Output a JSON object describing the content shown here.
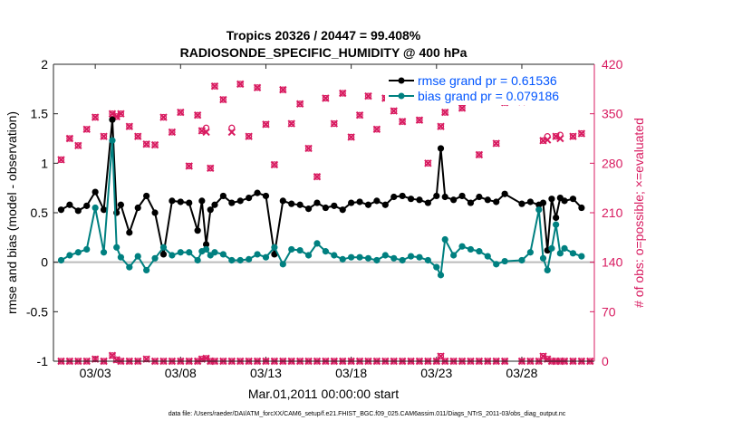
{
  "chart_data": {
    "type": "line",
    "title_line1": "Tropics 20326 / 20447 = 99.408%",
    "title_line2": "RADIOSONDE_SPECIFIC_HUMIDITY @ 400 hPa",
    "xlabel": "Mar.01,2011 00:00:00 start",
    "ylabel_left": "rmse and bias (model - observation)",
    "ylabel_right": "# of obs: o=possible; ×=evaluated",
    "footer": "data file: /Users/raeder/DAI/ATM_forcXX/CAM6_setup/f.e21.FHIST_BGC.f09_025.CAM6assim.011/Diags_NTrS_2011-03/obs_diag_output.nc",
    "xlim": [
      0.55,
      32.25
    ],
    "ylim_left": [
      -1,
      2
    ],
    "ylim_right": [
      0,
      420
    ],
    "x_ticks": [
      {
        "value": 3,
        "label": "03/03"
      },
      {
        "value": 8,
        "label": "03/08"
      },
      {
        "value": 13,
        "label": "03/13"
      },
      {
        "value": 18,
        "label": "03/18"
      },
      {
        "value": 23,
        "label": "03/23"
      },
      {
        "value": 28,
        "label": "03/28"
      }
    ],
    "y_ticks_left": [
      {
        "value": -1,
        "label": "-1"
      },
      {
        "value": -0.5,
        "label": "-0.5"
      },
      {
        "value": 0,
        "label": "0"
      },
      {
        "value": 0.5,
        "label": "0.5"
      },
      {
        "value": 1,
        "label": "1"
      },
      {
        "value": 1.5,
        "label": "1.5"
      },
      {
        "value": 2,
        "label": "2"
      }
    ],
    "y_ticks_right": [
      {
        "value": 0,
        "label": "0"
      },
      {
        "value": 70,
        "label": "70"
      },
      {
        "value": 140,
        "label": "140"
      },
      {
        "value": 210,
        "label": "210"
      },
      {
        "value": 280,
        "label": "280"
      },
      {
        "value": 350,
        "label": "350"
      },
      {
        "value": 420,
        "label": "420"
      }
    ],
    "legend": [
      {
        "name": "rmse grand pr = 0.61536",
        "color": "#000000"
      },
      {
        "name": "bias grand pr = 0.079186",
        "color": "#008080"
      }
    ],
    "colors": {
      "rmse": "#000000",
      "bias": "#008080",
      "obs": "#d81b60",
      "legend_text": "#0055ff",
      "zero_line": "#bbbbbb"
    },
    "series": [
      {
        "name": "rmse",
        "points": [
          [
            1,
            0.53
          ],
          [
            1.5,
            0.58
          ],
          [
            2,
            0.52
          ],
          [
            2.5,
            0.57
          ],
          [
            3,
            0.71
          ],
          [
            3.5,
            0.53
          ],
          [
            4,
            1.44
          ],
          [
            4.25,
            0.5
          ],
          [
            4.5,
            0.58
          ],
          [
            5,
            0.3
          ],
          [
            5.5,
            0.55
          ],
          [
            6,
            0.67
          ],
          [
            6.5,
            0.5
          ],
          [
            7,
            0.08
          ],
          [
            7.5,
            0.62
          ],
          [
            8,
            0.61
          ],
          [
            8.5,
            0.6
          ],
          [
            9,
            0.32
          ],
          [
            9.25,
            0.62
          ],
          [
            9.5,
            0.18
          ],
          [
            9.75,
            0.53
          ],
          [
            10,
            0.58
          ],
          [
            10.5,
            0.67
          ],
          [
            11,
            0.6
          ],
          [
            11.5,
            0.62
          ],
          [
            12,
            0.65
          ],
          [
            12.5,
            0.7
          ],
          [
            13,
            0.67
          ],
          [
            13.5,
            0.08
          ],
          [
            14,
            0.62
          ],
          [
            14.5,
            0.59
          ],
          [
            15,
            0.58
          ],
          [
            15.5,
            0.54
          ],
          [
            16,
            0.6
          ],
          [
            16.5,
            0.55
          ],
          [
            17,
            0.57
          ],
          [
            17.5,
            0.53
          ],
          [
            18,
            0.6
          ],
          [
            18.5,
            0.61
          ],
          [
            19,
            0.58
          ],
          [
            19.5,
            0.62
          ],
          [
            20,
            0.58
          ],
          [
            20.5,
            0.66
          ],
          [
            21,
            0.67
          ],
          [
            21.5,
            0.64
          ],
          [
            22,
            0.63
          ],
          [
            22.5,
            0.6
          ],
          [
            23,
            0.67
          ],
          [
            23.25,
            1.15
          ],
          [
            23.5,
            0.66
          ],
          [
            24,
            0.63
          ],
          [
            24.5,
            0.67
          ],
          [
            25,
            0.6
          ],
          [
            25.5,
            0.66
          ],
          [
            26,
            0.63
          ],
          [
            26.5,
            0.61
          ],
          [
            27,
            0.69
          ],
          [
            28,
            0.59
          ],
          [
            28.5,
            0.61
          ],
          [
            29,
            0.58
          ],
          [
            29.25,
            0.6
          ],
          [
            29.5,
            0.12
          ],
          [
            29.75,
            0.64
          ],
          [
            30,
            0.45
          ],
          [
            30.25,
            0.65
          ],
          [
            30.5,
            0.62
          ],
          [
            31,
            0.64
          ],
          [
            31.5,
            0.55
          ]
        ]
      },
      {
        "name": "bias",
        "points": [
          [
            1,
            0.02
          ],
          [
            1.5,
            0.07
          ],
          [
            2,
            0.1
          ],
          [
            2.5,
            0.13
          ],
          [
            3,
            0.55
          ],
          [
            3.5,
            0.1
          ],
          [
            4,
            1.23
          ],
          [
            4.25,
            0.15
          ],
          [
            4.5,
            0.05
          ],
          [
            5,
            -0.05
          ],
          [
            5.5,
            0.06
          ],
          [
            6,
            -0.08
          ],
          [
            6.5,
            0.04
          ],
          [
            7,
            0.15
          ],
          [
            7.5,
            0.07
          ],
          [
            8,
            0.1
          ],
          [
            8.5,
            0.1
          ],
          [
            9,
            0.02
          ],
          [
            9.25,
            0.11
          ],
          [
            9.5,
            0.13
          ],
          [
            9.75,
            0.07
          ],
          [
            10,
            0.1
          ],
          [
            10.5,
            0.08
          ],
          [
            11,
            0.02
          ],
          [
            11.5,
            0.02
          ],
          [
            12,
            0.03
          ],
          [
            12.5,
            0.08
          ],
          [
            13,
            0.05
          ],
          [
            13.5,
            0.15
          ],
          [
            14,
            -0.02
          ],
          [
            14.5,
            0.13
          ],
          [
            15,
            0.12
          ],
          [
            15.5,
            0.07
          ],
          [
            16,
            0.19
          ],
          [
            16.5,
            0.11
          ],
          [
            17,
            0.07
          ],
          [
            17.5,
            0.03
          ],
          [
            18,
            0.05
          ],
          [
            18.5,
            0.05
          ],
          [
            19,
            0.04
          ],
          [
            19.5,
            0.02
          ],
          [
            20,
            0.07
          ],
          [
            20.5,
            0.04
          ],
          [
            21,
            0.02
          ],
          [
            21.5,
            0.06
          ],
          [
            22,
            0.05
          ],
          [
            22.5,
            0.02
          ],
          [
            23,
            -0.05
          ],
          [
            23.25,
            -0.13
          ],
          [
            23.5,
            0.23
          ],
          [
            24,
            0.07
          ],
          [
            24.5,
            0.16
          ],
          [
            25,
            0.13
          ],
          [
            25.5,
            0.11
          ],
          [
            26,
            0.06
          ],
          [
            26.5,
            -0.02
          ],
          [
            27,
            0.01
          ],
          [
            28,
            0.02
          ],
          [
            28.5,
            0.1
          ],
          [
            29,
            0.53
          ],
          [
            29.25,
            0.04
          ],
          [
            29.5,
            -0.08
          ],
          [
            29.75,
            0.14
          ],
          [
            30,
            0.38
          ],
          [
            30.25,
            0.09
          ],
          [
            30.5,
            0.14
          ],
          [
            31,
            0.09
          ],
          [
            31.5,
            0.06
          ]
        ]
      }
    ],
    "obs_possible": [
      [
        1,
        285
      ],
      [
        1.5,
        315
      ],
      [
        2,
        305
      ],
      [
        2.5,
        328
      ],
      [
        3,
        345
      ],
      [
        3.5,
        318
      ],
      [
        4,
        350
      ],
      [
        4.25,
        346
      ],
      [
        4.5,
        350
      ],
      [
        5,
        332
      ],
      [
        5.5,
        318
      ],
      [
        6,
        307
      ],
      [
        6.5,
        306
      ],
      [
        7,
        345
      ],
      [
        7.5,
        324
      ],
      [
        8,
        352
      ],
      [
        8.5,
        276
      ],
      [
        9,
        348
      ],
      [
        9.25,
        326
      ],
      [
        9.5,
        330
      ],
      [
        9.75,
        273
      ],
      [
        10,
        389
      ],
      [
        10.5,
        370
      ],
      [
        11,
        330
      ],
      [
        11.5,
        392
      ],
      [
        12,
        318
      ],
      [
        12.5,
        387
      ],
      [
        13,
        335
      ],
      [
        13.5,
        278
      ],
      [
        14,
        384
      ],
      [
        14.5,
        336
      ],
      [
        15,
        364
      ],
      [
        15.5,
        301
      ],
      [
        16,
        261
      ],
      [
        16.5,
        372
      ],
      [
        17,
        336
      ],
      [
        17.5,
        379
      ],
      [
        18,
        317
      ],
      [
        18.5,
        348
      ],
      [
        19,
        375
      ],
      [
        19.5,
        328
      ],
      [
        20,
        372
      ],
      [
        20.5,
        354
      ],
      [
        21,
        339
      ],
      [
        21.5,
        379
      ],
      [
        22,
        341
      ],
      [
        22.5,
        280
      ],
      [
        23,
        391
      ],
      [
        23.25,
        332
      ],
      [
        23.5,
        352
      ],
      [
        24,
        374
      ],
      [
        24.5,
        358
      ],
      [
        25,
        383
      ],
      [
        25.5,
        292
      ],
      [
        26,
        380
      ],
      [
        26.5,
        308
      ],
      [
        27,
        366
      ],
      [
        28,
        367
      ],
      [
        28.5,
        368
      ],
      [
        29,
        372
      ],
      [
        29.25,
        312
      ],
      [
        29.5,
        318
      ],
      [
        29.75,
        375
      ],
      [
        30,
        318
      ],
      [
        30.25,
        320
      ],
      [
        30.5,
        387
      ],
      [
        31,
        318
      ],
      [
        31.5,
        322
      ]
    ],
    "obs_evaluated": [
      [
        1,
        285
      ],
      [
        1.5,
        315
      ],
      [
        2,
        305
      ],
      [
        2.5,
        328
      ],
      [
        3,
        345
      ],
      [
        3.5,
        318
      ],
      [
        4,
        350
      ],
      [
        4.25,
        346
      ],
      [
        4.5,
        350
      ],
      [
        5,
        332
      ],
      [
        5.5,
        318
      ],
      [
        6,
        307
      ],
      [
        6.5,
        306
      ],
      [
        7,
        345
      ],
      [
        7.5,
        324
      ],
      [
        8,
        352
      ],
      [
        8.5,
        276
      ],
      [
        9,
        348
      ],
      [
        9.25,
        326
      ],
      [
        9.5,
        324
      ],
      [
        9.75,
        273
      ],
      [
        10,
        389
      ],
      [
        10.5,
        370
      ],
      [
        11,
        324
      ],
      [
        11.5,
        392
      ],
      [
        12,
        318
      ],
      [
        12.5,
        387
      ],
      [
        13,
        335
      ],
      [
        13.5,
        278
      ],
      [
        14,
        384
      ],
      [
        14.5,
        336
      ],
      [
        15,
        364
      ],
      [
        15.5,
        301
      ],
      [
        16,
        261
      ],
      [
        16.5,
        372
      ],
      [
        17,
        336
      ],
      [
        17.5,
        379
      ],
      [
        18,
        317
      ],
      [
        18.5,
        348
      ],
      [
        19,
        375
      ],
      [
        19.5,
        328
      ],
      [
        20,
        372
      ],
      [
        20.5,
        354
      ],
      [
        21,
        339
      ],
      [
        21.5,
        379
      ],
      [
        22,
        341
      ],
      [
        22.5,
        280
      ],
      [
        23,
        391
      ],
      [
        23.25,
        332
      ],
      [
        23.5,
        352
      ],
      [
        24,
        374
      ],
      [
        24.5,
        358
      ],
      [
        25,
        383
      ],
      [
        25.5,
        292
      ],
      [
        26,
        380
      ],
      [
        26.5,
        308
      ],
      [
        27,
        366
      ],
      [
        28,
        367
      ],
      [
        28.5,
        368
      ],
      [
        29,
        372
      ],
      [
        29.25,
        312
      ],
      [
        29.5,
        313
      ],
      [
        29.75,
        375
      ],
      [
        30,
        318
      ],
      [
        30.25,
        315
      ],
      [
        30.5,
        387
      ],
      [
        31,
        318
      ],
      [
        31.5,
        322
      ]
    ],
    "obs_bottom_possible": [
      [
        1,
        0
      ],
      [
        1.5,
        0
      ],
      [
        2,
        0
      ],
      [
        2.5,
        0
      ],
      [
        3,
        3
      ],
      [
        3.5,
        0
      ],
      [
        4,
        8
      ],
      [
        4.25,
        2
      ],
      [
        4.5,
        0
      ],
      [
        5,
        0
      ],
      [
        5.5,
        0
      ],
      [
        6,
        3
      ],
      [
        6.5,
        0
      ],
      [
        7,
        0
      ],
      [
        7.5,
        0
      ],
      [
        8,
        0
      ],
      [
        8.5,
        0
      ],
      [
        9,
        0
      ],
      [
        9.25,
        3
      ],
      [
        9.5,
        4
      ],
      [
        9.75,
        0
      ],
      [
        10,
        0
      ],
      [
        10.5,
        0
      ],
      [
        11,
        0
      ],
      [
        11.5,
        0
      ],
      [
        12,
        0
      ],
      [
        12.5,
        0
      ],
      [
        13,
        0
      ],
      [
        13.5,
        0
      ],
      [
        14,
        0
      ],
      [
        14.5,
        0
      ],
      [
        15,
        0
      ],
      [
        15.5,
        0
      ],
      [
        16,
        0
      ],
      [
        16.5,
        0
      ],
      [
        17,
        0
      ],
      [
        17.5,
        0
      ],
      [
        18,
        0
      ],
      [
        18.5,
        0
      ],
      [
        19,
        0
      ],
      [
        19.5,
        0
      ],
      [
        20,
        0
      ],
      [
        20.5,
        0
      ],
      [
        21,
        0
      ],
      [
        21.5,
        0
      ],
      [
        22,
        0
      ],
      [
        22.5,
        0
      ],
      [
        23,
        0
      ],
      [
        23.25,
        7
      ],
      [
        23.5,
        0
      ],
      [
        24,
        0
      ],
      [
        24.5,
        0
      ],
      [
        25,
        0
      ],
      [
        25.5,
        0
      ],
      [
        26,
        0
      ],
      [
        26.5,
        0
      ],
      [
        27,
        0
      ],
      [
        28,
        0
      ],
      [
        28.5,
        0
      ],
      [
        29,
        0
      ],
      [
        29.25,
        7
      ],
      [
        29.5,
        3
      ],
      [
        29.75,
        0
      ],
      [
        30,
        0
      ],
      [
        30.25,
        0
      ],
      [
        30.5,
        0
      ],
      [
        31,
        0
      ],
      [
        31.5,
        0
      ],
      [
        32,
        0
      ]
    ]
  }
}
